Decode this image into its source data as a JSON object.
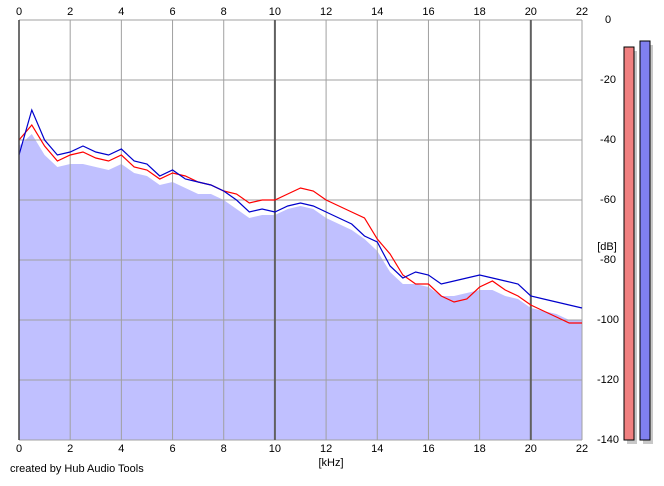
{
  "chart_data": {
    "type": "spectrum",
    "xlabel": "[kHz]",
    "ylabel": "[dB]",
    "credit": "created by Hub Audio Tools",
    "xlim": [
      0,
      22
    ],
    "xticks": [
      0,
      2,
      4,
      6,
      8,
      10,
      12,
      14,
      16,
      18,
      20,
      22
    ],
    "ylim": [
      -140,
      0
    ],
    "yticks": [
      0,
      -20,
      -40,
      -60,
      -80,
      -100,
      -120,
      -140
    ],
    "grid": true,
    "x": [
      0,
      0.5,
      1,
      1.5,
      2,
      2.5,
      3,
      3.5,
      4,
      4.5,
      5,
      5.5,
      6,
      6.5,
      7,
      7.5,
      8,
      8.5,
      9,
      9.5,
      10,
      10.5,
      11,
      11.5,
      12,
      12.5,
      13,
      13.5,
      14,
      14.5,
      15,
      15.5,
      16,
      16.5,
      17,
      17.5,
      18,
      18.5,
      19,
      19.5,
      20,
      20.5,
      21,
      21.5,
      22
    ],
    "series": [
      {
        "color": "#c0c0ff",
        "area": true,
        "values": [
          -42,
          -38,
          -45,
          -49,
          -48,
          -48,
          -49,
          -50,
          -48,
          -51,
          -52,
          -55,
          -54,
          -56,
          -58,
          -58,
          -60,
          -63,
          -66,
          -65,
          -65,
          -63,
          -62,
          -63,
          -66,
          -68,
          -70,
          -73,
          -77,
          -84,
          -88,
          -88,
          -89,
          -92,
          -92,
          -91,
          -90,
          -90,
          -92,
          -93,
          -96,
          -97,
          -98,
          -100,
          -100
        ]
      },
      {
        "color": "#ff0000",
        "values": [
          -40,
          -35,
          -42,
          -47,
          -45,
          -44,
          -46,
          -47,
          -45,
          -49,
          -50,
          -53,
          -51,
          -52,
          -54,
          -55,
          -57,
          -58,
          -61,
          -60,
          -60,
          -58,
          -56,
          -57,
          -60,
          -62,
          -64,
          -66,
          -73,
          -78,
          -85,
          -88,
          -88,
          -92,
          -94,
          -93,
          -89,
          -87,
          -90,
          -92,
          -95,
          -97,
          -99,
          -101,
          -101
        ]
      },
      {
        "color": "#0000cc",
        "values": [
          -45,
          -30,
          -40,
          -45,
          -44,
          -42,
          -44,
          -45,
          -43,
          -47,
          -48,
          -52,
          -50,
          -53,
          -54,
          -55,
          -57,
          -60,
          -64,
          -63,
          -64,
          -62,
          -61,
          -62,
          -64,
          -66,
          -68,
          -72,
          -74,
          -82,
          -86,
          -84,
          -85,
          -88,
          -87,
          -86,
          -85,
          -86,
          -87,
          -88,
          -92,
          -93,
          -94,
          -95,
          -96
        ]
      }
    ],
    "meters": [
      {
        "color": "#f08080",
        "value": -9
      },
      {
        "color": "#8080f0",
        "value": -7
      }
    ]
  }
}
